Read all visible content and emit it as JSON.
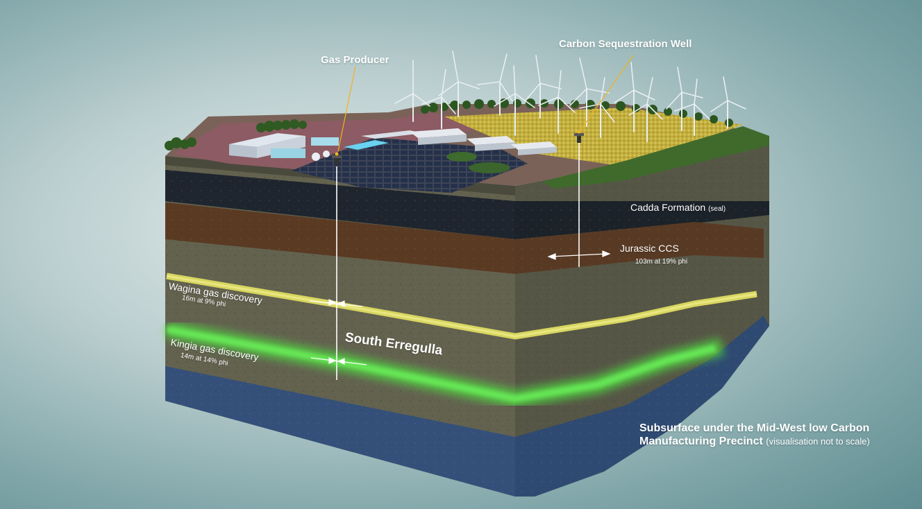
{
  "labels": {
    "gas_producer": "Gas Producer",
    "carbon_well": "Carbon Sequestration Well",
    "cadda": "Cadda Formation",
    "cadda_note": "(seal)",
    "jurassic": "Jurassic CCS",
    "jurassic_detail": "103m at 19% phi",
    "wagina": "Wagina gas discovery",
    "wagina_detail": "16m at 9% phi",
    "kingia": "Kingia gas discovery",
    "kingia_detail": "14m at 14% phi",
    "field": "South Erregulla"
  },
  "caption": {
    "line1": "Subsurface under the Mid-West low Carbon",
    "line2": "Manufacturing Precinct",
    "note": "(visualisation not to scale)"
  },
  "colors": {
    "rock": "#5f5f4c",
    "rock_right": "#505041",
    "dark_seal": "#1c232c",
    "brown_band": "#5a3a22",
    "yellow_seam": "#d6d45e",
    "green_seam": "#59e04b",
    "deep_water": "#2f4f7a",
    "field_yellow": "#c8b544",
    "plant_pink": "#8a5a62",
    "leader": "#f2b21e"
  }
}
